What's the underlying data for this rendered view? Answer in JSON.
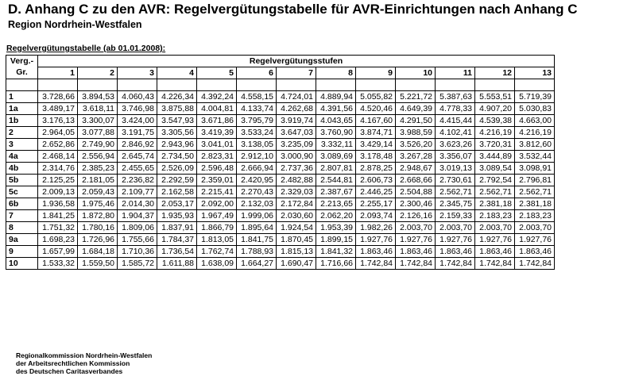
{
  "header": {
    "title": "D. Anhang C zu den AVR: Regelvergütungstabelle für AVR-Einrichtungen nach Anhang C",
    "subtitle": "Region Nordrhein-Westfalen"
  },
  "table": {
    "caption": "Regelvergütungstabelle (ab 01.01.2008):",
    "grade_header_line1": "Verg.-",
    "grade_header_line2": "Gr.",
    "group_header": "Regelvergütungsstufen",
    "steps": [
      "1",
      "2",
      "3",
      "4",
      "5",
      "6",
      "7",
      "8",
      "9",
      "10",
      "11",
      "12",
      "13"
    ],
    "rows": [
      {
        "grade": "1",
        "values": [
          "3.728,66",
          "3.894,53",
          "4.060,43",
          "4.226,34",
          "4.392,24",
          "4.558,15",
          "4.724,01",
          "4.889,94",
          "5.055,82",
          "5.221,72",
          "5.387,63",
          "5.553,51",
          "5.719,39"
        ]
      },
      {
        "grade": "1a",
        "values": [
          "3.489,17",
          "3.618,11",
          "3.746,98",
          "3.875,88",
          "4.004,81",
          "4.133,74",
          "4.262,68",
          "4.391,56",
          "4.520,46",
          "4.649,39",
          "4.778,33",
          "4.907,20",
          "5.030,83"
        ]
      },
      {
        "grade": "1b",
        "values": [
          "3.176,13",
          "3.300,07",
          "3.424,00",
          "3.547,93",
          "3.671,86",
          "3.795,79",
          "3.919,74",
          "4.043,65",
          "4.167,60",
          "4.291,50",
          "4.415,44",
          "4.539,38",
          "4.663,00"
        ]
      },
      {
        "grade": "2",
        "values": [
          "2.964,05",
          "3.077,88",
          "3.191,75",
          "3.305,56",
          "3.419,39",
          "3.533,24",
          "3.647,03",
          "3.760,90",
          "3.874,71",
          "3.988,59",
          "4.102,41",
          "4.216,19",
          "4.216,19"
        ]
      },
      {
        "grade": "3",
        "values": [
          "2.652,86",
          "2.749,90",
          "2.846,92",
          "2.943,96",
          "3.041,01",
          "3.138,05",
          "3.235,09",
          "3.332,11",
          "3.429,14",
          "3.526,20",
          "3.623,26",
          "3.720,31",
          "3.812,60"
        ]
      },
      {
        "grade": "4a",
        "values": [
          "2.468,14",
          "2.556,94",
          "2.645,74",
          "2.734,50",
          "2.823,31",
          "2.912,10",
          "3.000,90",
          "3.089,69",
          "3.178,48",
          "3.267,28",
          "3.356,07",
          "3.444,89",
          "3.532,44"
        ]
      },
      {
        "grade": "4b",
        "values": [
          "2.314,76",
          "2.385,23",
          "2.455,65",
          "2.526,09",
          "2.596,48",
          "2.666,94",
          "2.737,36",
          "2.807,81",
          "2.878,25",
          "2.948,67",
          "3.019,13",
          "3.089,54",
          "3.098,91"
        ]
      },
      {
        "grade": "5b",
        "values": [
          "2.125,25",
          "2.181,05",
          "2.236,82",
          "2.292,59",
          "2.359,01",
          "2.420,95",
          "2.482,88",
          "2.544,81",
          "2.606,73",
          "2.668,66",
          "2.730,61",
          "2.792,54",
          "2.796,81"
        ]
      },
      {
        "grade": "5c",
        "values": [
          "2.009,13",
          "2.059,43",
          "2.109,77",
          "2.162,58",
          "2.215,41",
          "2.270,43",
          "2.329,03",
          "2.387,67",
          "2.446,25",
          "2.504,88",
          "2.562,71",
          "2.562,71",
          "2.562,71"
        ]
      },
      {
        "grade": "6b",
        "values": [
          "1.936,58",
          "1.975,46",
          "2.014,30",
          "2.053,17",
          "2.092,00",
          "2.132,03",
          "2.172,84",
          "2.213,65",
          "2.255,17",
          "2.300,46",
          "2.345,75",
          "2.381,18",
          "2.381,18"
        ]
      },
      {
        "grade": "7",
        "values": [
          "1.841,25",
          "1.872,80",
          "1.904,37",
          "1.935,93",
          "1.967,49",
          "1.999,06",
          "2.030,60",
          "2.062,20",
          "2.093,74",
          "2.126,16",
          "2.159,33",
          "2.183,23",
          "2.183,23"
        ]
      },
      {
        "grade": "8",
        "values": [
          "1.751,32",
          "1.780,16",
          "1.809,06",
          "1.837,91",
          "1.866,79",
          "1.895,64",
          "1.924,54",
          "1.953,39",
          "1.982,26",
          "2.003,70",
          "2.003,70",
          "2.003,70",
          "2.003,70"
        ]
      },
      {
        "grade": "9a",
        "values": [
          "1.698,23",
          "1.726,96",
          "1.755,66",
          "1.784,37",
          "1.813,05",
          "1.841,75",
          "1.870,45",
          "1.899,15",
          "1.927,76",
          "1.927,76",
          "1.927,76",
          "1.927,76",
          "1.927,76"
        ]
      },
      {
        "grade": "9",
        "values": [
          "1.657,99",
          "1.684,18",
          "1.710,36",
          "1.736,54",
          "1.762,74",
          "1.788,93",
          "1.815,13",
          "1.841,32",
          "1.863,46",
          "1.863,46",
          "1.863,46",
          "1.863,46",
          "1.863,46"
        ]
      },
      {
        "grade": "10",
        "values": [
          "1.533,32",
          "1.559,50",
          "1.585,72",
          "1.611,88",
          "1.638,09",
          "1.664,27",
          "1.690,47",
          "1.716,66",
          "1.742,84",
          "1.742,84",
          "1.742,84",
          "1.742,84",
          "1.742,84"
        ]
      }
    ]
  },
  "footer": {
    "lines": [
      "Regionalkommission Nordrhein-Westfalen",
      "der Arbeitsrechtlichen Kommission",
      "des Deutschen Caritasverbandes"
    ]
  }
}
